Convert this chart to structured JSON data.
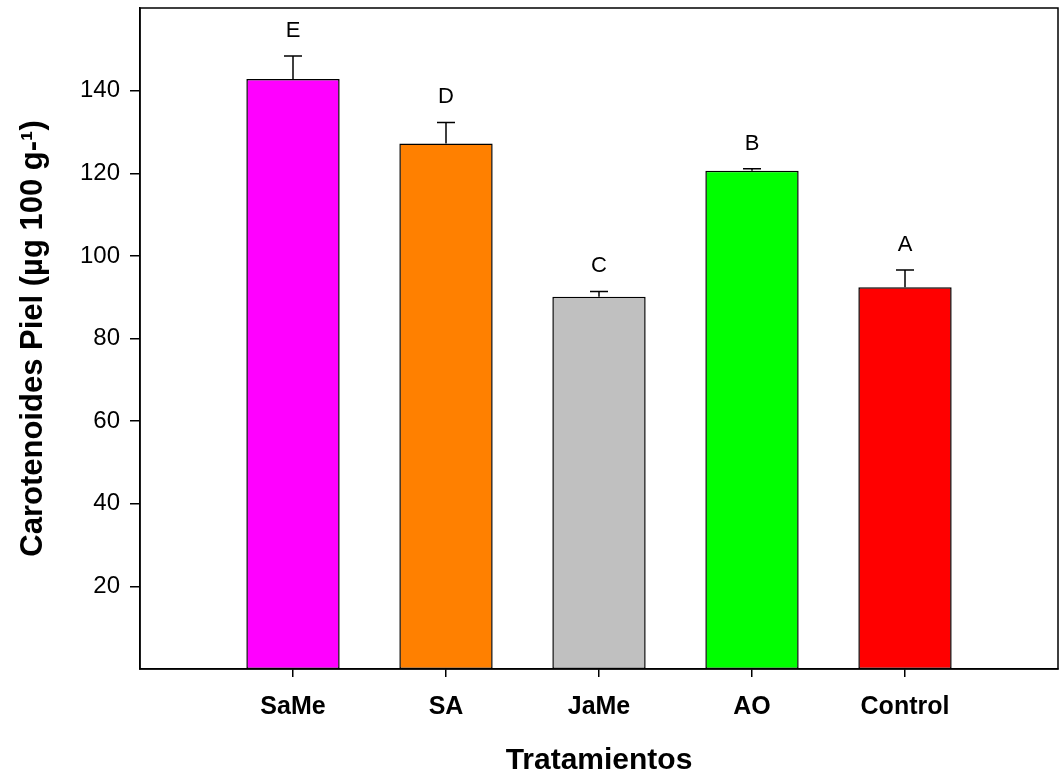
{
  "chart_data": {
    "type": "bar",
    "xlabel": "Tratamientos",
    "ylabel": "Carotenoides Piel (µg 100 g-¹)",
    "categories": [
      "SaMe",
      "SA",
      "JaMe",
      "AO",
      "Control"
    ],
    "values": [
      142.8,
      127.2,
      90.1,
      120.6,
      92.4
    ],
    "colors": [
      "#ff00ff",
      "#ff8000",
      "#c0c0c0",
      "#00ff00",
      "#ff0000"
    ],
    "errors": [
      [
        142.8,
        148.4
      ],
      [
        127.2,
        132.3
      ],
      [
        90.1,
        91.4
      ],
      [
        120.6,
        121.1
      ],
      [
        92.4,
        96.6
      ]
    ],
    "ylim": [
      0,
      160
    ],
    "yticks": [
      20,
      40,
      60,
      80,
      100,
      120,
      140
    ],
    "annotations": [
      {
        "text": "E",
        "x": "SaMe",
        "y": 148.4
      },
      {
        "text": "D",
        "x": "SA",
        "y": 132.3
      },
      {
        "text": "C",
        "x": "JaMe",
        "y": 91.4
      },
      {
        "text": "B",
        "x": "AO",
        "y": 121.1
      },
      {
        "text": "A",
        "x": "Control",
        "y": 96.6
      }
    ]
  }
}
